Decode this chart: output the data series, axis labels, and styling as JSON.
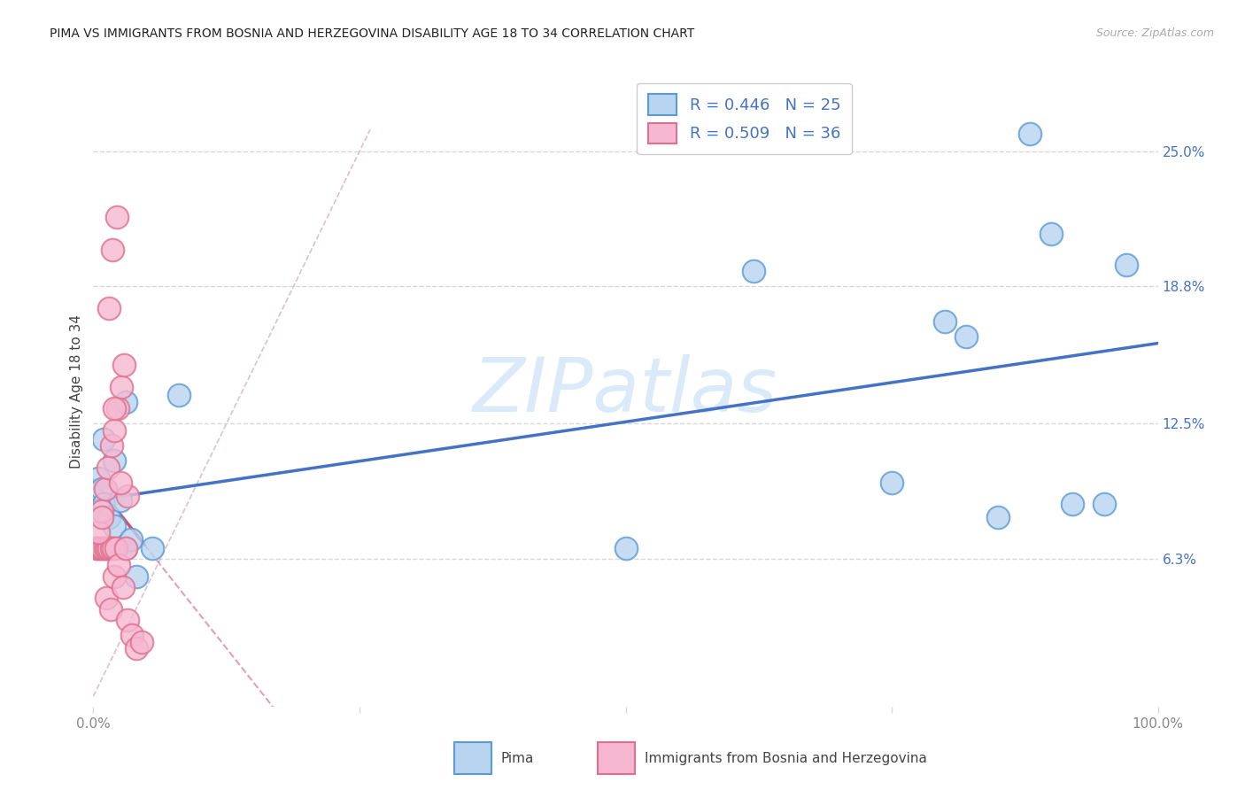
{
  "title": "PIMA VS IMMIGRANTS FROM BOSNIA AND HERZEGOVINA DISABILITY AGE 18 TO 34 CORRELATION CHART",
  "source": "Source: ZipAtlas.com",
  "ylabel": "Disability Age 18 to 34",
  "xlim": [
    0.0,
    1.0
  ],
  "ylim_low": -0.005,
  "ylim_high": 0.285,
  "ytick_positions": [
    0.063,
    0.125,
    0.188,
    0.25
  ],
  "ytick_labels": [
    "6.3%",
    "12.5%",
    "18.8%",
    "25.0%"
  ],
  "pima_R": "0.446",
  "pima_N": "25",
  "bosnia_R": "0.509",
  "bosnia_N": "36",
  "pima_face_color": "#b8d4f0",
  "bosnia_face_color": "#f5b8d0",
  "pima_edge_color": "#5b9bd5",
  "bosnia_edge_color": "#e07090",
  "pima_line_color": "#4472c4",
  "bosnia_line_color": "#d45070",
  "diag_color": "#e0c0c8",
  "watermark_color": "#dbeaf8",
  "background_color": "#ffffff",
  "grid_color": "#d8d8d8",
  "title_color": "#222222",
  "ylabel_color": "#444444",
  "tick_label_color": "#888888",
  "right_tick_color": "#4472c4",
  "source_color": "#aaaaaa",
  "legend_label_pima": "Pima",
  "legend_label_bosnia": "Immigrants from Bosnia and Herzegovina",
  "pima_x": [
    0.005,
    0.008,
    0.01,
    0.015,
    0.02,
    0.025,
    0.03,
    0.035,
    0.04,
    0.01,
    0.02,
    0.03,
    0.055,
    0.08,
    0.5,
    0.62,
    0.75,
    0.8,
    0.82,
    0.85,
    0.88,
    0.9,
    0.92,
    0.95,
    0.97
  ],
  "pima_y": [
    0.1,
    0.095,
    0.088,
    0.082,
    0.078,
    0.09,
    0.068,
    0.072,
    0.055,
    0.118,
    0.108,
    0.135,
    0.068,
    0.138,
    0.068,
    0.195,
    0.098,
    0.172,
    0.165,
    0.082,
    0.258,
    0.212,
    0.088,
    0.088,
    0.198
  ],
  "bosnia_x": [
    0.003,
    0.005,
    0.007,
    0.009,
    0.011,
    0.013,
    0.015,
    0.017,
    0.019,
    0.021,
    0.005,
    0.008,
    0.011,
    0.014,
    0.017,
    0.02,
    0.023,
    0.026,
    0.029,
    0.032,
    0.008,
    0.012,
    0.016,
    0.02,
    0.024,
    0.028,
    0.032,
    0.036,
    0.04,
    0.045,
    0.015,
    0.02,
    0.025,
    0.03,
    0.018,
    0.022
  ],
  "bosnia_y": [
    0.068,
    0.068,
    0.068,
    0.068,
    0.068,
    0.068,
    0.068,
    0.068,
    0.068,
    0.068,
    0.075,
    0.085,
    0.095,
    0.105,
    0.115,
    0.122,
    0.132,
    0.142,
    0.152,
    0.092,
    0.082,
    0.045,
    0.04,
    0.055,
    0.06,
    0.05,
    0.035,
    0.028,
    0.022,
    0.025,
    0.178,
    0.132,
    0.098,
    0.068,
    0.205,
    0.22
  ]
}
